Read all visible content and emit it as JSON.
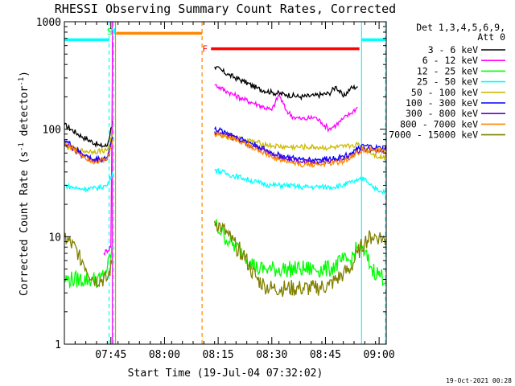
{
  "chart_data": {
    "type": "line",
    "title": "RHESSI Observing Summary Count Rates, Corrected",
    "xlabel": "Start Time (19-Jul-04 07:32:02)",
    "ylabel_main": "Corrected Count Rate (s",
    "ylabel_sup1": "-1",
    "ylabel_mid": " detector",
    "ylabel_sup2": "-1",
    "ylabel_end": ")",
    "yscale": "log",
    "ylim": [
      1,
      1000
    ],
    "xlim_minutes": [
      0,
      90
    ],
    "x_unit": "minutes after 07:32:02",
    "x_ticks": [
      {
        "t": 13,
        "label": "07:45"
      },
      {
        "t": 28,
        "label": "08:00"
      },
      {
        "t": 43,
        "label": "08:15"
      },
      {
        "t": 58,
        "label": "08:30"
      },
      {
        "t": 73,
        "label": "08:45"
      },
      {
        "t": 88,
        "label": "09:00"
      }
    ],
    "y_ticks": [
      {
        "v": 1,
        "label": "1"
      },
      {
        "v": 10,
        "label": "10"
      },
      {
        "v": 100,
        "label": "100"
      },
      {
        "v": 1000,
        "label": "1000"
      }
    ],
    "legend_header": [
      "Det 1,3,4,5,6,9,",
      "Att 0"
    ],
    "legend_placement": "right",
    "series": [
      {
        "name": "3 - 6 keV",
        "color": "#000000",
        "points": [
          [
            0,
            110
          ],
          [
            5,
            85
          ],
          [
            10,
            70
          ],
          [
            12,
            70
          ],
          [
            13.5,
            120
          ],
          [
            42,
            380
          ],
          [
            46,
            320
          ],
          [
            50,
            280
          ],
          [
            54,
            240
          ],
          [
            58,
            220
          ],
          [
            62,
            210
          ],
          [
            66,
            200
          ],
          [
            70,
            205
          ],
          [
            74,
            215
          ],
          [
            76,
            250
          ],
          [
            78,
            200
          ],
          [
            80,
            240
          ],
          [
            82,
            250
          ]
        ]
      },
      {
        "name": "6 - 12 keV",
        "color": "#ff00ff",
        "points": [
          [
            11,
            7
          ],
          [
            13,
            8
          ],
          [
            13.5,
            650
          ],
          [
            42,
            260
          ],
          [
            46,
            220
          ],
          [
            50,
            190
          ],
          [
            54,
            170
          ],
          [
            58,
            150
          ],
          [
            60,
            210
          ],
          [
            62,
            150
          ],
          [
            64,
            130
          ],
          [
            66,
            125
          ],
          [
            68,
            125
          ],
          [
            70,
            130
          ],
          [
            72,
            115
          ],
          [
            74,
            100
          ],
          [
            76,
            110
          ],
          [
            78,
            125
          ],
          [
            80,
            140
          ],
          [
            82,
            160
          ]
        ]
      },
      {
        "name": "12 - 25 keV",
        "color": "#00ff00",
        "points": [
          [
            0,
            4
          ],
          [
            8,
            4
          ],
          [
            10,
            4
          ],
          [
            12,
            5
          ],
          [
            13.5,
            8
          ],
          [
            42,
            13
          ],
          [
            44,
            11
          ],
          [
            46,
            9
          ],
          [
            48,
            8
          ],
          [
            50,
            7
          ],
          [
            52,
            6
          ],
          [
            54,
            5
          ],
          [
            56,
            5
          ],
          [
            58,
            5
          ],
          [
            62,
            5
          ],
          [
            66,
            5
          ],
          [
            70,
            5
          ],
          [
            74,
            5
          ],
          [
            78,
            6
          ],
          [
            80,
            6
          ],
          [
            82,
            8
          ],
          [
            84,
            7
          ],
          [
            86,
            5
          ],
          [
            90,
            4
          ]
        ]
      },
      {
        "name": "25 - 50 keV",
        "color": "#00ffff",
        "points": [
          [
            0,
            30
          ],
          [
            4,
            28
          ],
          [
            8,
            28
          ],
          [
            12,
            30
          ],
          [
            13.5,
            40
          ],
          [
            42,
            42
          ],
          [
            46,
            38
          ],
          [
            50,
            35
          ],
          [
            54,
            32
          ],
          [
            58,
            30
          ],
          [
            62,
            30
          ],
          [
            66,
            29
          ],
          [
            70,
            29
          ],
          [
            74,
            29
          ],
          [
            78,
            30
          ],
          [
            80,
            32
          ],
          [
            82,
            33
          ],
          [
            84,
            35
          ],
          [
            86,
            30
          ],
          [
            88,
            26
          ],
          [
            90,
            26
          ]
        ]
      },
      {
        "name": "50 - 100 keV",
        "color": "#ccbb00",
        "points": [
          [
            0,
            70
          ],
          [
            4,
            63
          ],
          [
            8,
            62
          ],
          [
            12,
            64
          ],
          [
            13.5,
            90
          ],
          [
            42,
            90
          ],
          [
            46,
            85
          ],
          [
            50,
            80
          ],
          [
            54,
            75
          ],
          [
            58,
            70
          ],
          [
            62,
            68
          ],
          [
            66,
            68
          ],
          [
            70,
            68
          ],
          [
            74,
            67
          ],
          [
            78,
            68
          ],
          [
            80,
            70
          ],
          [
            82,
            72
          ],
          [
            84,
            65
          ],
          [
            88,
            55
          ],
          [
            90,
            55
          ]
        ]
      },
      {
        "name": "100 - 300 keV",
        "color": "#0000ff",
        "points": [
          [
            0,
            80
          ],
          [
            4,
            62
          ],
          [
            8,
            52
          ],
          [
            12,
            55
          ],
          [
            13.5,
            85
          ],
          [
            42,
            100
          ],
          [
            46,
            92
          ],
          [
            50,
            80
          ],
          [
            54,
            70
          ],
          [
            58,
            60
          ],
          [
            62,
            55
          ],
          [
            66,
            52
          ],
          [
            70,
            52
          ],
          [
            74,
            53
          ],
          [
            78,
            56
          ],
          [
            80,
            60
          ],
          [
            82,
            65
          ],
          [
            84,
            70
          ],
          [
            86,
            68
          ],
          [
            90,
            65
          ]
        ]
      },
      {
        "name": "300 - 800 keV",
        "color": "#6600cc",
        "points": [
          [
            0,
            75
          ],
          [
            4,
            60
          ],
          [
            8,
            50
          ],
          [
            12,
            52
          ],
          [
            13.5,
            80
          ],
          [
            42,
            95
          ],
          [
            46,
            88
          ],
          [
            50,
            76
          ],
          [
            54,
            67
          ],
          [
            58,
            58
          ],
          [
            62,
            53
          ],
          [
            66,
            50
          ],
          [
            70,
            50
          ],
          [
            74,
            50
          ],
          [
            78,
            53
          ],
          [
            80,
            58
          ],
          [
            82,
            62
          ],
          [
            84,
            66
          ],
          [
            86,
            64
          ],
          [
            90,
            62
          ]
        ]
      },
      {
        "name": "800 - 7000 keV",
        "color": "#ff8800",
        "points": [
          [
            0,
            75
          ],
          [
            4,
            60
          ],
          [
            8,
            50
          ],
          [
            12,
            52
          ],
          [
            13.5,
            80
          ],
          [
            42,
            90
          ],
          [
            46,
            85
          ],
          [
            50,
            75
          ],
          [
            54,
            65
          ],
          [
            58,
            55
          ],
          [
            62,
            50
          ],
          [
            66,
            47
          ],
          [
            70,
            47
          ],
          [
            74,
            48
          ],
          [
            78,
            50
          ],
          [
            80,
            55
          ],
          [
            82,
            60
          ],
          [
            84,
            65
          ],
          [
            86,
            64
          ],
          [
            90,
            62
          ]
        ]
      },
      {
        "name": "7000 - 15000 keV",
        "color": "#808000",
        "points": [
          [
            0,
            10
          ],
          [
            4,
            7
          ],
          [
            8,
            4
          ],
          [
            12,
            4
          ],
          [
            13.5,
            6
          ],
          [
            42,
            14
          ],
          [
            44,
            12
          ],
          [
            46,
            10
          ],
          [
            48,
            8
          ],
          [
            50,
            7
          ],
          [
            52,
            5
          ],
          [
            54,
            4
          ],
          [
            56,
            3.5
          ],
          [
            58,
            3.3
          ],
          [
            62,
            3.3
          ],
          [
            66,
            3.3
          ],
          [
            70,
            3.3
          ],
          [
            74,
            3.5
          ],
          [
            78,
            4.5
          ],
          [
            80,
            5
          ],
          [
            82,
            7
          ],
          [
            84,
            9
          ],
          [
            86,
            10
          ],
          [
            88,
            10
          ],
          [
            90,
            9
          ]
        ]
      }
    ],
    "top_flags": [
      {
        "label": "S",
        "color": "#00ff00",
        "t": 12.6
      },
      {
        "label": "N",
        "color": "#00ffff",
        "t": 13.6
      },
      {
        "label": "F",
        "color": "#ff0000",
        "t": 39.3
      }
    ],
    "bars": [
      {
        "name": "cyan-bar-left",
        "color": "#00ffff",
        "t0": 0,
        "t1": 12.5,
        "v": 680
      },
      {
        "name": "orange-bar",
        "color": "#ff8800",
        "t0": 14.5,
        "t1": 38.5,
        "v": 780
      },
      {
        "name": "red-bar",
        "color": "#ff0000",
        "t0": 41,
        "t1": 82.5,
        "v": 560
      },
      {
        "name": "cyan-bar-right",
        "color": "#00ffff",
        "t0": 83,
        "t1": 90,
        "v": 680
      }
    ],
    "vlines": [
      {
        "name": "vline-cyan-1",
        "color": "#00ffff",
        "t": 12.5,
        "dash": true
      },
      {
        "name": "vline-magenta",
        "color": "#ff00ff",
        "t": 13.4,
        "dash": false
      },
      {
        "name": "vline-cyan-2",
        "color": "#00ffff",
        "t": 13.8,
        "dash": true
      },
      {
        "name": "vline-orange-1",
        "color": "#ff8800",
        "t": 14.3,
        "dash": false
      },
      {
        "name": "vline-orange-2",
        "color": "#ff8800",
        "t": 38.5,
        "dash": true
      },
      {
        "name": "vline-cyan-3",
        "color": "#00ffff",
        "t": 83.1,
        "dash": false
      },
      {
        "name": "vline-cyan-4",
        "color": "#00ffff",
        "t": 89.8,
        "dash": true
      }
    ],
    "timestamp": "19-Oct-2021 00:28"
  }
}
